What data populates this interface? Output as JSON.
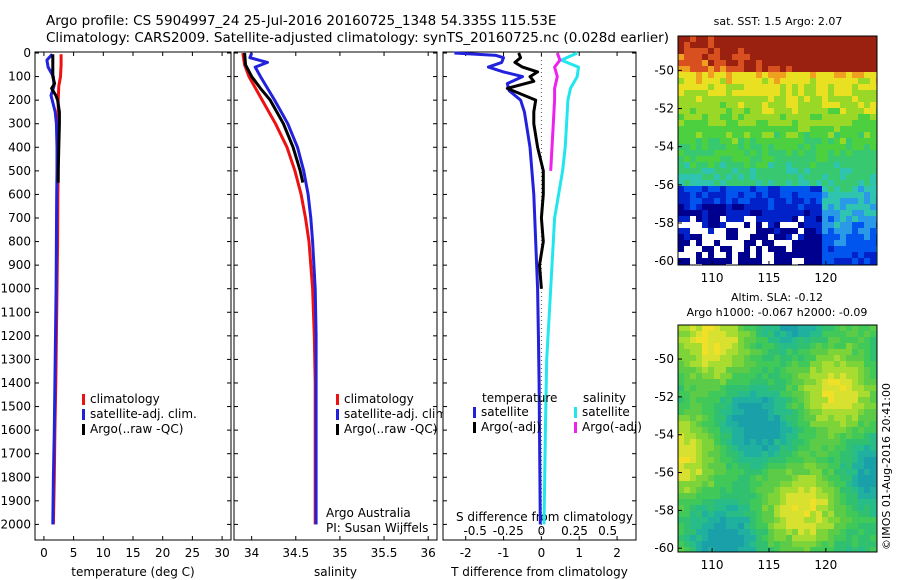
{
  "header": {
    "line1": "Argo profile: CS 5904997_24 25-Jul-2016 20160725_1348 54.335S 115.53E",
    "line2": "Climatology: CARS2009. Satellite-adjusted climatology: synTS_20160725.nc (0.028d earlier)"
  },
  "credit": "©IMOS 01-Aug-2016 20:41:00",
  "colors": {
    "red": "#ee1111",
    "blue": "#2222dd",
    "black": "#000000",
    "cyan": "#22e6ee",
    "magenta": "#ee22ee"
  },
  "chart_data": [
    {
      "id": "temperature",
      "type": "line",
      "xlabel": "temperature (deg C)",
      "ylabel": "",
      "xlim": [
        -1.5,
        31.5
      ],
      "ylim": [
        2070,
        0
      ],
      "xticks": [
        0,
        5,
        10,
        15,
        20,
        25,
        30
      ],
      "yticks": [
        0,
        100,
        200,
        300,
        400,
        500,
        600,
        700,
        800,
        900,
        1000,
        1100,
        1200,
        1300,
        1400,
        1500,
        1600,
        1700,
        1800,
        1900,
        2000
      ],
      "legend": [
        "climatology",
        "satellite-adj. clim.",
        "Argo(..raw -QC)"
      ],
      "series": [
        {
          "name": "climatology",
          "color": "red",
          "depth": [
            5,
            50,
            100,
            140,
            200,
            300,
            400,
            500,
            600,
            800,
            1000,
            1200,
            1400,
            1600,
            1800,
            2000
          ],
          "values": [
            2.9,
            2.9,
            2.8,
            2.5,
            2.4,
            2.4,
            2.4,
            2.4,
            2.35,
            2.3,
            2.2,
            2.1,
            2.0,
            1.85,
            1.75,
            1.6
          ]
        },
        {
          "name": "satellite-adj. clim.",
          "color": "blue",
          "depth": [
            5,
            30,
            60,
            100,
            140,
            180,
            250,
            300,
            400,
            500,
            600,
            800,
            1000,
            1200,
            1400,
            1600,
            1800,
            2000
          ],
          "values": [
            1.4,
            0.5,
            0.7,
            1.6,
            1.7,
            1.2,
            1.9,
            2.1,
            2.2,
            2.2,
            2.15,
            2.1,
            2.05,
            1.95,
            1.85,
            1.75,
            1.6,
            1.5
          ]
        },
        {
          "name": "Argo(..raw -QC)",
          "color": "black",
          "depth": [
            5,
            100,
            130,
            150,
            180,
            200,
            250,
            300,
            400,
            500,
            550
          ],
          "values": [
            1.5,
            1.5,
            1.8,
            1.3,
            2.0,
            2.3,
            2.6,
            2.6,
            2.5,
            2.4,
            2.4
          ]
        }
      ]
    },
    {
      "id": "salinity",
      "type": "line",
      "xlabel": "salinity",
      "ylabel": "",
      "xlim": [
        33.8,
        36.1
      ],
      "ylim": [
        2070,
        0
      ],
      "xticks": [
        34,
        34.5,
        35,
        35.5,
        36
      ],
      "legend": [
        "climatology",
        "satellite-adj. clim.",
        "Argo(..raw -QC)"
      ],
      "annotation": [
        "Argo Australia",
        "PI: Susan Wijffels"
      ],
      "series": [
        {
          "name": "climatology",
          "color": "red",
          "depth": [
            0,
            50,
            100,
            200,
            300,
            400,
            500,
            600,
            700,
            800,
            1000,
            1200,
            1400,
            1600,
            1800,
            2000
          ],
          "values": [
            33.9,
            33.92,
            33.97,
            34.12,
            34.27,
            34.4,
            34.49,
            34.56,
            34.61,
            34.65,
            34.69,
            34.71,
            34.72,
            34.72,
            34.72,
            34.72
          ]
        },
        {
          "name": "satellite-adj. clim.",
          "color": "blue",
          "depth": [
            0,
            20,
            40,
            60,
            100,
            200,
            300,
            400,
            500,
            600,
            700,
            800,
            1000,
            1200,
            1400,
            1600,
            1800,
            2000
          ],
          "values": [
            34.0,
            33.98,
            34.18,
            34.04,
            34.1,
            34.26,
            34.41,
            34.52,
            34.59,
            34.64,
            34.67,
            34.69,
            34.72,
            34.73,
            34.73,
            34.73,
            34.73,
            34.73
          ]
        },
        {
          "name": "Argo(..raw -QC)",
          "color": "black",
          "depth": [
            0,
            50,
            100,
            150,
            200,
            300,
            400,
            500,
            550
          ],
          "values": [
            33.92,
            33.93,
            34.0,
            34.1,
            34.21,
            34.36,
            34.47,
            34.55,
            34.58
          ]
        }
      ]
    },
    {
      "id": "difference",
      "type": "line",
      "xlabel": "T difference from climatology",
      "xlabel_top": "S difference from climatology",
      "xlim": [
        -2.6,
        2.5
      ],
      "xticks": [
        -2,
        -1,
        0,
        1,
        2
      ],
      "xticks_s": [
        -0.5,
        -0.25,
        0,
        0.25,
        0.5
      ],
      "ylim": [
        2070,
        0
      ],
      "legend_titles": [
        "temperature",
        "salinity"
      ],
      "legend": [
        "satellite",
        "Argo(-adj)",
        "satellite",
        "Argo(-adj)"
      ],
      "series": [
        {
          "name": "temperature satellite",
          "color": "blue",
          "depth": [
            0,
            10,
            20,
            40,
            60,
            80,
            100,
            130,
            160,
            200,
            250,
            300,
            400,
            500,
            600,
            800,
            1000,
            1200,
            1400,
            1600,
            1800,
            2000
          ],
          "values": [
            -2.3,
            -1.2,
            -1.0,
            -1.05,
            -1.4,
            -1.0,
            -0.5,
            -0.9,
            -0.85,
            -0.55,
            -0.45,
            -0.4,
            -0.3,
            -0.25,
            -0.2,
            -0.15,
            -0.1,
            -0.08,
            -0.06,
            -0.05,
            -0.04,
            -0.03
          ]
        },
        {
          "name": "temperature Argo(-adj)",
          "color": "black",
          "depth": [
            0,
            20,
            40,
            60,
            80,
            100,
            120,
            150,
            200,
            250,
            300,
            400,
            500,
            600,
            700,
            800,
            900,
            1000
          ],
          "values": [
            -0.6,
            -0.55,
            -0.7,
            -0.5,
            -0.1,
            -0.3,
            -0.2,
            -0.9,
            -0.15,
            -0.2,
            -0.2,
            -0.1,
            0.05,
            0.05,
            0.0,
            0.05,
            -0.05,
            0.0
          ]
        },
        {
          "name": "salinity satellite",
          "color": "cyan",
          "depth": [
            0,
            30,
            60,
            100,
            150,
            200,
            300,
            400,
            500,
            700,
            1000,
            1300,
            1600,
            2000
          ],
          "values": [
            0.27,
            0.15,
            0.28,
            0.27,
            0.22,
            0.2,
            0.19,
            0.18,
            0.16,
            0.1,
            0.07,
            0.04,
            0.03,
            0.02
          ]
        },
        {
          "name": "salinity Argo(-adj)",
          "color": "magenta",
          "depth": [
            0,
            30,
            60,
            100,
            150,
            200,
            300,
            400,
            500
          ],
          "values": [
            0.12,
            0.14,
            0.1,
            0.12,
            0.1,
            0.1,
            0.09,
            0.08,
            0.07
          ]
        }
      ]
    },
    {
      "id": "sst-map",
      "type": "heatmap",
      "title": "sat. SST: 1.5 Argo: 2.07",
      "xlim": [
        107,
        124.5
      ],
      "ylim": [
        -60.2,
        -48.2
      ],
      "xticks": [
        110,
        115,
        120
      ],
      "yticks": [
        -50,
        -52,
        -54,
        -56,
        -58,
        -60
      ]
    },
    {
      "id": "sla-map",
      "type": "heatmap",
      "title": "Altim. SLA: -0.12",
      "subtitle": "Argo h1000: -0.067 h2000: -0.09",
      "xlim": [
        107,
        124.5
      ],
      "ylim": [
        -60.2,
        -48.2
      ],
      "xticks": [
        110,
        115,
        120
      ],
      "yticks": [
        -50,
        -52,
        -54,
        -56,
        -58,
        -60
      ]
    }
  ]
}
